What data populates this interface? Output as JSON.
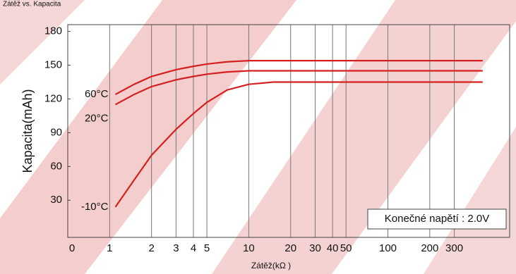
{
  "chart_data": {
    "type": "line",
    "title": "Zátěž vs. Kapacita",
    "x_label": "Zátěž(kΩ )",
    "y_label": "Kapacita(mAh)",
    "x_origin_label": "0",
    "annotation": "Konečné napětí : 2.0V",
    "x_scale": "log",
    "grid": true,
    "x": [
      1.1,
      1.5,
      2,
      3,
      4,
      5,
      7,
      10,
      15,
      20,
      50,
      480
    ],
    "series": [
      {
        "name": "60°C",
        "color": "#d42020",
        "values": [
          124,
          133,
          140,
          146,
          149,
          151,
          153,
          154,
          154,
          154,
          154,
          154
        ]
      },
      {
        "name": "20°C",
        "color": "#d42020",
        "values": [
          115,
          124,
          131,
          137,
          140,
          142,
          144,
          145,
          145,
          145,
          145,
          145
        ]
      },
      {
        "name": "-10°C",
        "color": "#d42020",
        "values": [
          24,
          48,
          70,
          93,
          107,
          117,
          128,
          133,
          135,
          135,
          135,
          135
        ]
      }
    ],
    "xlim": [
      0.5,
      750
    ],
    "xticks": [
      1,
      2,
      3,
      4,
      5,
      10,
      20,
      30,
      40,
      50,
      100,
      200,
      300
    ],
    "ylim": [
      -3,
      186
    ],
    "yticks": [
      30,
      60,
      90,
      120,
      150,
      180
    ]
  }
}
